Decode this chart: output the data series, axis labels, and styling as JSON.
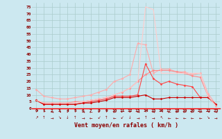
{
  "xlabel": "Vent moyen/en rafales ( km/h )",
  "background_color": "#cce8f0",
  "grid_color": "#aacccc",
  "x_values": [
    0,
    1,
    2,
    3,
    4,
    5,
    6,
    7,
    8,
    9,
    10,
    11,
    12,
    13,
    14,
    15,
    16,
    17,
    18,
    19,
    20,
    21,
    22,
    23
  ],
  "series": [
    {
      "color": "#ffaaaa",
      "linewidth": 0.8,
      "marker": "D",
      "markersize": 1.5,
      "y": [
        14,
        9,
        8,
        7,
        7,
        8,
        9,
        10,
        12,
        14,
        20,
        22,
        25,
        48,
        47,
        26,
        29,
        29,
        27,
        27,
        25,
        26,
        11,
        3
      ]
    },
    {
      "color": "#ff8888",
      "linewidth": 0.8,
      "marker": "D",
      "markersize": 1.5,
      "y": [
        6,
        4,
        4,
        4,
        4,
        5,
        5,
        6,
        7,
        8,
        10,
        12,
        15,
        20,
        25,
        28,
        28,
        28,
        27,
        26,
        24,
        23,
        9,
        2
      ]
    },
    {
      "color": "#ff4444",
      "linewidth": 0.8,
      "marker": "D",
      "markersize": 1.5,
      "y": [
        6,
        3,
        3,
        3,
        3,
        3,
        4,
        5,
        6,
        7,
        9,
        9,
        9,
        10,
        33,
        22,
        18,
        20,
        18,
        17,
        16,
        8,
        8,
        3
      ]
    },
    {
      "color": "#cc0000",
      "linewidth": 0.8,
      "marker": "D",
      "markersize": 1.5,
      "y": [
        6,
        3,
        3,
        3,
        3,
        3,
        4,
        4,
        5,
        6,
        8,
        8,
        8,
        9,
        10,
        7,
        7,
        8,
        8,
        8,
        8,
        8,
        8,
        3
      ]
    },
    {
      "color": "#ffcccc",
      "linewidth": 0.8,
      "marker": null,
      "markersize": 0,
      "y": [
        6,
        4,
        4,
        4,
        4,
        4,
        5,
        6,
        7,
        8,
        10,
        12,
        15,
        20,
        75,
        73,
        26,
        26,
        26,
        26,
        26,
        26,
        9,
        2
      ]
    }
  ],
  "yticks": [
    0,
    5,
    10,
    15,
    20,
    25,
    30,
    35,
    40,
    45,
    50,
    55,
    60,
    65,
    70,
    75
  ],
  "ylim": [
    0,
    78
  ],
  "xlim": [
    -0.5,
    23.5
  ],
  "wind_arrows": [
    "↗",
    "↑",
    "→",
    "↘",
    "↓",
    "↑",
    "→",
    "←",
    "↙",
    "↑",
    "←",
    "↙",
    "↓",
    "→",
    "↑",
    "→",
    "↖",
    "←",
    "←",
    "←",
    "←",
    "←",
    "↘",
    "→"
  ]
}
